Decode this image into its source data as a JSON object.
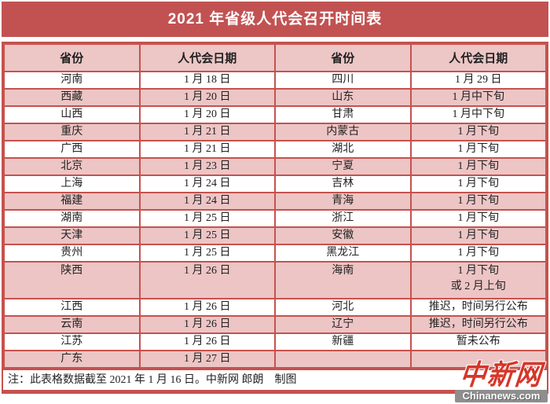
{
  "title": "2021 年省级人代会召开时间表",
  "table": {
    "headers": [
      "省份",
      "人代会日期",
      "省份",
      "人代会日期"
    ],
    "rows": [
      {
        "cells": [
          "河南",
          "1 月 18 日",
          "四川",
          "1 月 29 日"
        ]
      },
      {
        "cells": [
          "西藏",
          "1 月 20 日",
          "山东",
          "1 月中下旬"
        ]
      },
      {
        "cells": [
          "山西",
          "1 月 20 日",
          "甘肃",
          "1 月中下旬"
        ]
      },
      {
        "cells": [
          "重庆",
          "1 月 21 日",
          "内蒙古",
          "1 月下旬"
        ]
      },
      {
        "cells": [
          "广西",
          "1 月 21 日",
          "湖北",
          "1 月下旬"
        ]
      },
      {
        "cells": [
          "北京",
          "1 月 23 日",
          "宁夏",
          "1 月下旬"
        ]
      },
      {
        "cells": [
          "上海",
          "1 月 24 日",
          "吉林",
          "1 月下旬"
        ]
      },
      {
        "cells": [
          "福建",
          "1 月 24 日",
          "青海",
          "1 月下旬"
        ]
      },
      {
        "cells": [
          "湖南",
          "1 月 25 日",
          "浙江",
          "1 月下旬"
        ]
      },
      {
        "cells": [
          "天津",
          "1 月 25 日",
          "安徽",
          "1 月下旬"
        ]
      },
      {
        "cells": [
          "贵州",
          "1 月 25 日",
          "黑龙江",
          "1 月下旬"
        ]
      },
      {
        "cells": [
          "陕西",
          "1 月 26 日",
          "海南",
          "1 月下旬\n或 2 月上旬"
        ],
        "double": true
      },
      {
        "cells": [
          "江西",
          "1 月 26 日",
          "河北",
          "推迟，时间另行公布"
        ]
      },
      {
        "cells": [
          "云南",
          "1 月 26 日",
          "辽宁",
          "推迟，时间另行公布"
        ]
      },
      {
        "cells": [
          "江苏",
          "1 月 26 日",
          "新疆",
          "暂未公布"
        ]
      },
      {
        "cells": [
          "广东",
          "1 月 27 日",
          "",
          ""
        ]
      }
    ]
  },
  "note": "注：此表格数据截至 2021 年 1 月 16 日。中新网 郎朗　制图",
  "logo": {
    "name": "中新网",
    "domain": "Chinanews.com"
  },
  "colors": {
    "title_background": "#C25252",
    "table_border": "#C5524E",
    "row_pink": "#EDC5C5",
    "header_pink": "#EDC6C6",
    "text": "#222222",
    "logo_red": "#D6362A",
    "logo_bar_gray": "#8E8E8E"
  }
}
